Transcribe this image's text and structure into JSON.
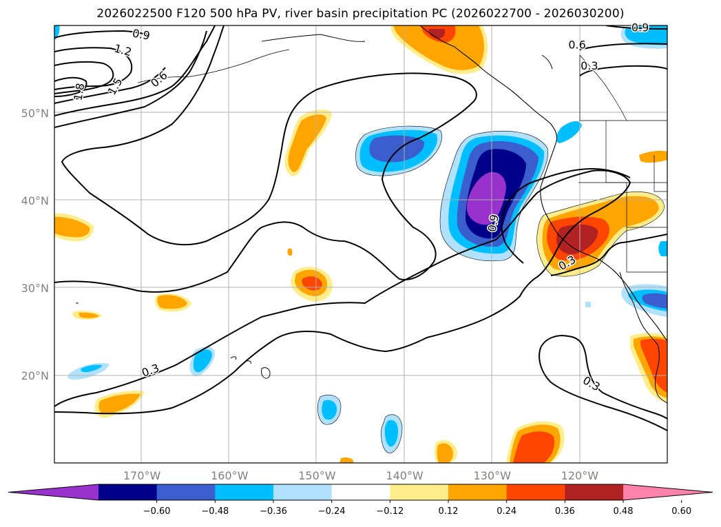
{
  "title": "2026022500 F120 500 hPa PV, river basin precipitation PC (2026022700 - 2026030200)",
  "map": {
    "lat_labels": [
      {
        "value": 50,
        "text": "50°N"
      },
      {
        "value": 40,
        "text": "40°N"
      },
      {
        "value": 30,
        "text": "30°N"
      },
      {
        "value": 20,
        "text": "20°N"
      }
    ],
    "lon_labels": [
      {
        "value": -170,
        "text": "170°W"
      },
      {
        "value": -160,
        "text": "160°W"
      },
      {
        "value": -150,
        "text": "150°W"
      },
      {
        "value": -140,
        "text": "140°W"
      },
      {
        "value": -130,
        "text": "130°W"
      },
      {
        "value": -120,
        "text": "120°W"
      }
    ],
    "lon_range": [
      -180,
      -110
    ],
    "lat_range": [
      10,
      60
    ]
  },
  "contour_labels": [
    {
      "text": "0.9",
      "lon": -170.1,
      "lat": 58.9,
      "angle": 10
    },
    {
      "text": "1.2",
      "lon": -172.2,
      "lat": 57.1,
      "angle": 15
    },
    {
      "text": "1.5",
      "lon": -173.0,
      "lat": 53.0,
      "angle": -60
    },
    {
      "text": "1.8",
      "lon": -177.1,
      "lat": 52.4,
      "angle": -80
    },
    {
      "text": "0.6",
      "lon": -168.0,
      "lat": 53.8,
      "angle": -40
    },
    {
      "text": "0.9",
      "lon": -113.1,
      "lat": 59.7,
      "angle": 0
    },
    {
      "text": "0.6",
      "lon": -120.3,
      "lat": 57.7,
      "angle": 0
    },
    {
      "text": "0.3",
      "lon": -118.9,
      "lat": 55.3,
      "angle": 0
    },
    {
      "text": "0.9",
      "lon": -129.8,
      "lat": 37.4,
      "angle": -80
    },
    {
      "text": "0.3",
      "lon": -121.4,
      "lat": 32.8,
      "angle": -30
    },
    {
      "text": "0.3",
      "lon": -169.0,
      "lat": 20.5,
      "angle": -20
    },
    {
      "text": "0.3",
      "lon": -118.7,
      "lat": 19.0,
      "angle": 30
    }
  ],
  "colorbar": {
    "colors": [
      "#9932cc",
      "#00008b",
      "#3a5fcd",
      "#00bfff",
      "#b0e2ff",
      "#ffffff",
      "#ffec8b",
      "#ffa500",
      "#ff4500",
      "#b22222",
      "#ff82ab"
    ],
    "ticks": [
      {
        "value": -0.6,
        "text": "−0.60"
      },
      {
        "value": -0.48,
        "text": "−0.48"
      },
      {
        "value": -0.36,
        "text": "−0.36"
      },
      {
        "value": -0.24,
        "text": "−0.24"
      },
      {
        "value": -0.12,
        "text": "−0.12"
      },
      {
        "value": 0.12,
        "text": "0.12"
      },
      {
        "value": 0.24,
        "text": "0.24"
      },
      {
        "value": 0.36,
        "text": "0.36"
      },
      {
        "value": 0.48,
        "text": "0.48"
      },
      {
        "value": 0.6,
        "text": "0.60"
      }
    ]
  }
}
